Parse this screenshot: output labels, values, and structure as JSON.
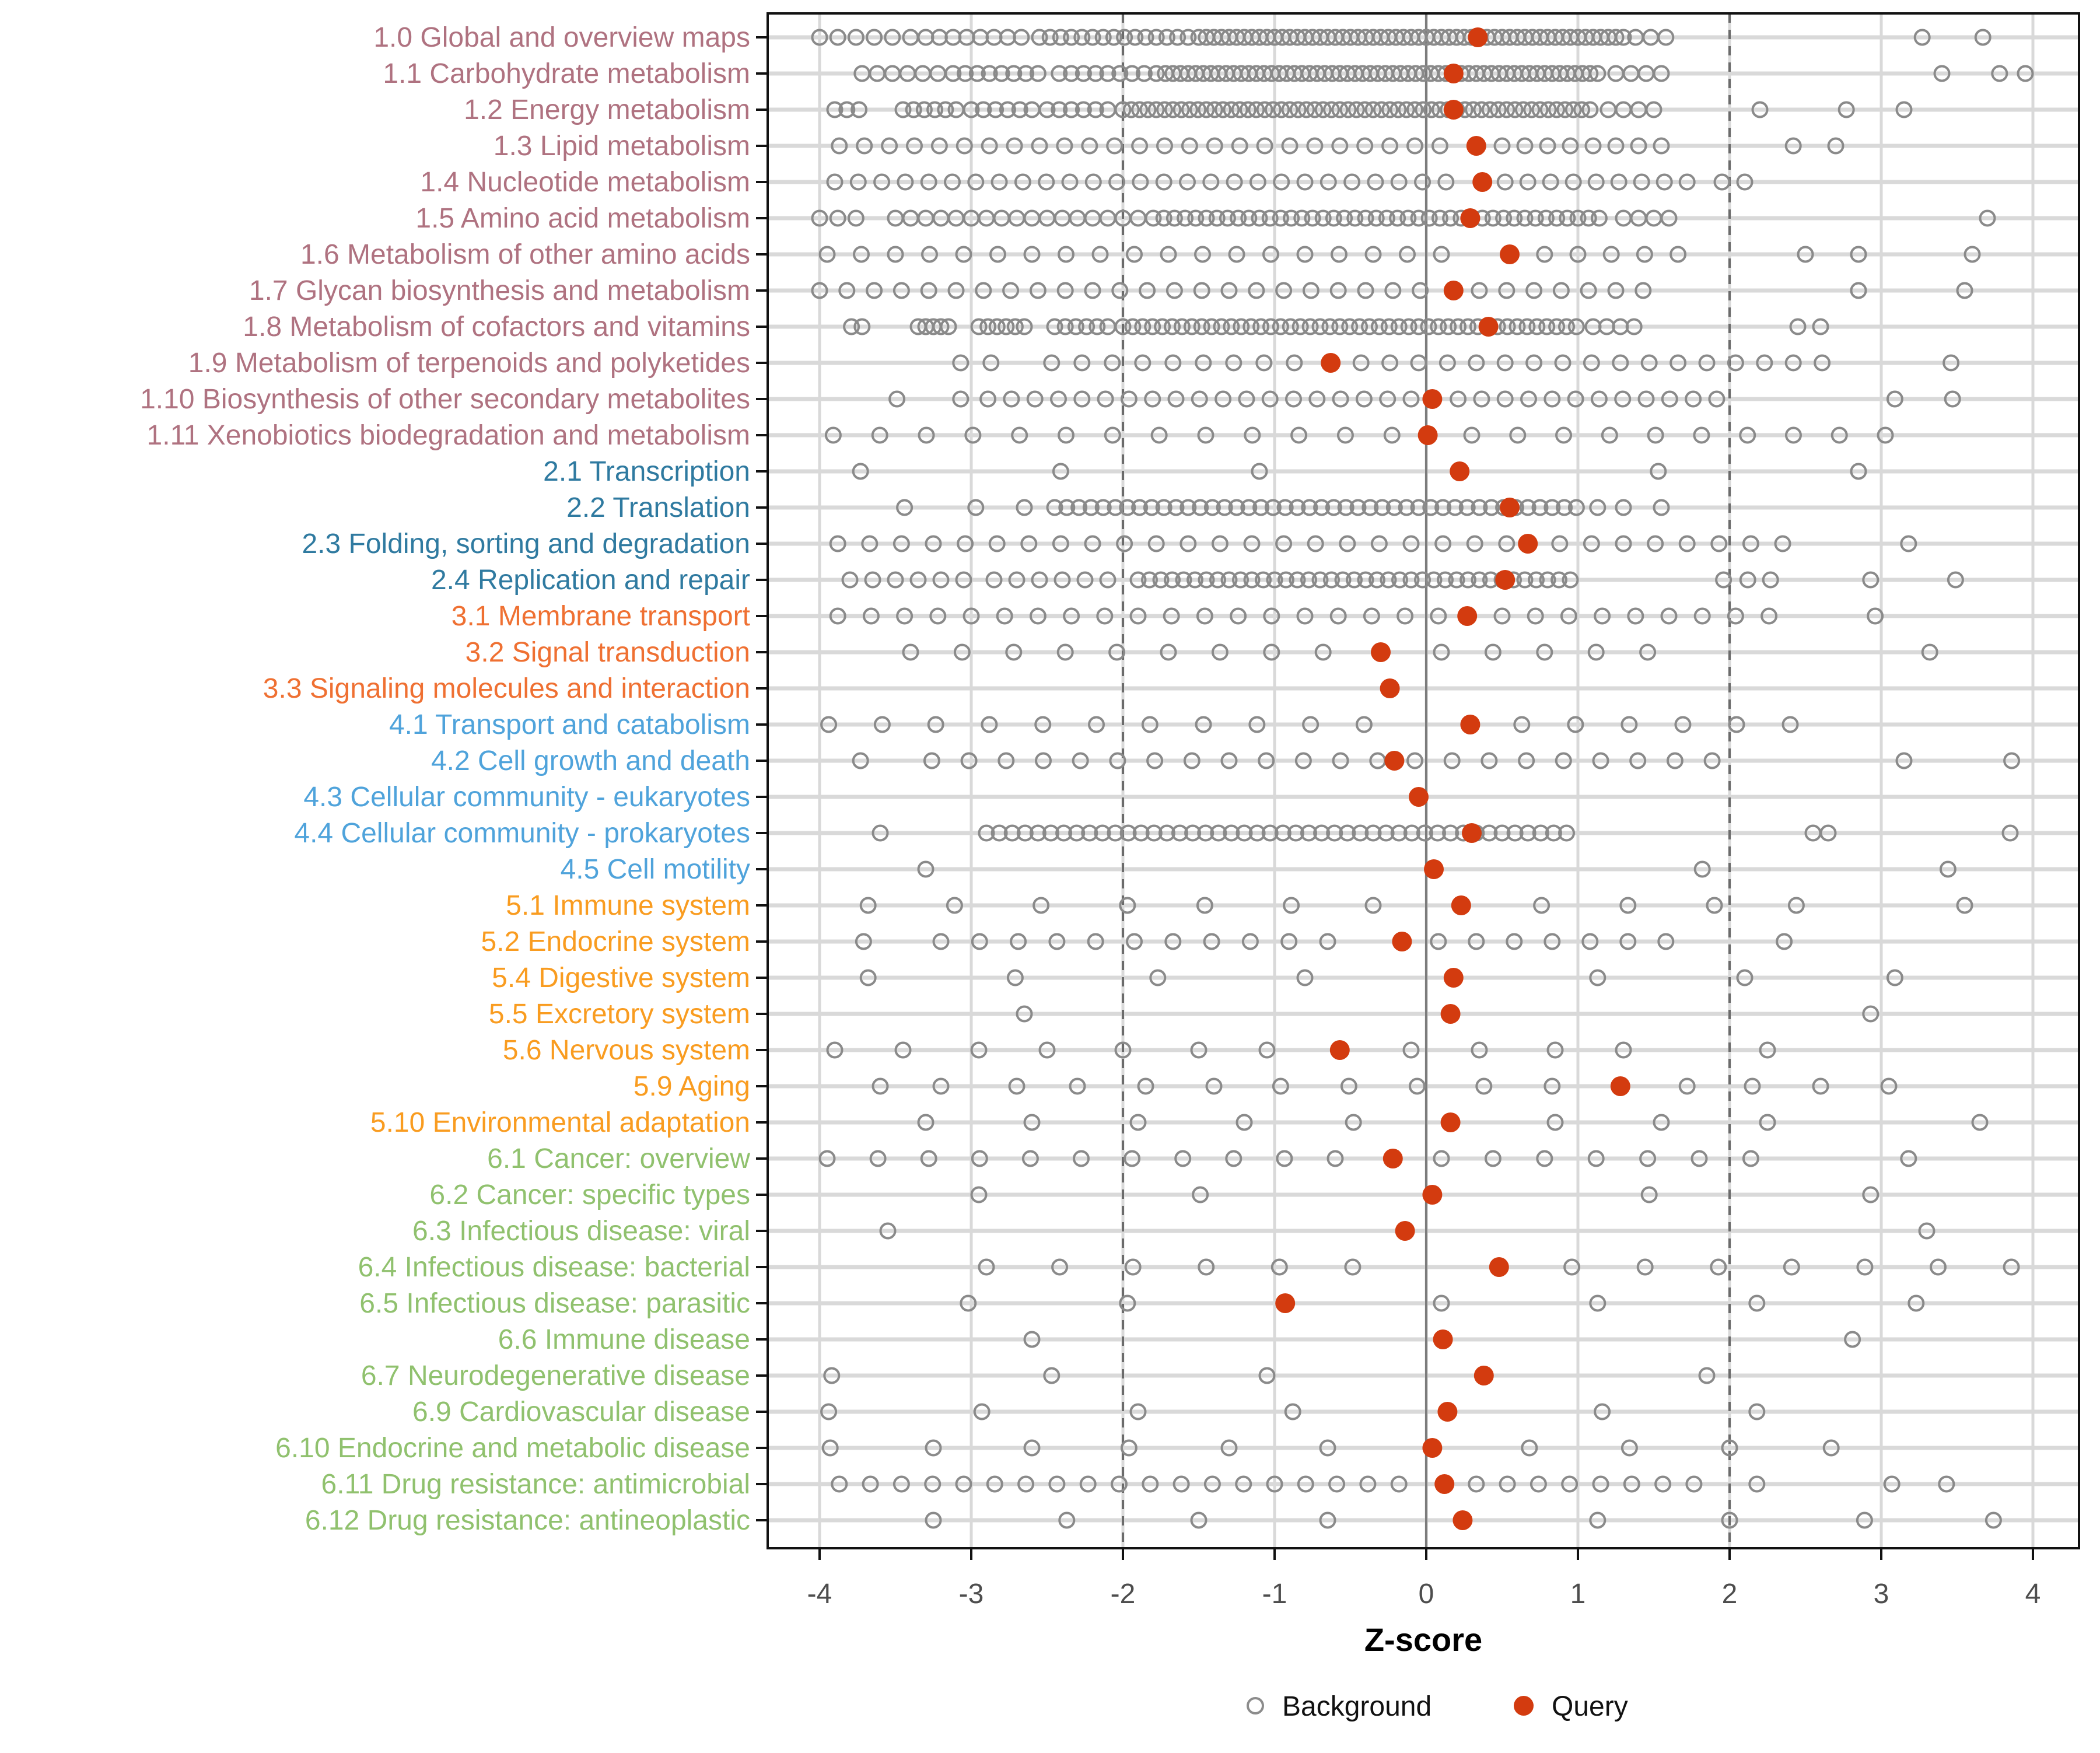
{
  "chart_data": {
    "type": "scatter",
    "title": "",
    "xlabel": "Z-score",
    "xlim": [
      -4.35,
      4.3
    ],
    "x_ticks": [
      -4,
      -3,
      -2,
      -1,
      0,
      1,
      2,
      3,
      4
    ],
    "grid": true,
    "reference_lines": {
      "solid_at": 0,
      "dashed_at": [
        -2,
        2
      ]
    },
    "legend_position": "bottom",
    "legend": [
      {
        "label": "Background",
        "marker": "open-circle",
        "color": "#8c8c8c"
      },
      {
        "label": "Query",
        "marker": "filled-circle",
        "color": "#d33b0f"
      }
    ],
    "groups": [
      {
        "id": "group-1",
        "color": "#af7280"
      },
      {
        "id": "group-2",
        "color": "#2f7aa0"
      },
      {
        "id": "group-3",
        "color": "#ef7032"
      },
      {
        "id": "group-4",
        "color": "#4fa3db"
      },
      {
        "id": "group-5",
        "color": "#f99c20"
      },
      {
        "id": "group-6",
        "color": "#90c16e"
      }
    ],
    "background_encoding": "each entry is a z value or a run [start, end, step]",
    "rows": [
      {
        "label": "1.0 Global and overview maps",
        "group": 0,
        "query": 0.34,
        "background": [
          [
            -4.0,
            -3.4,
            0.12
          ],
          [
            -3.3,
            -2.62,
            0.09
          ],
          [
            -2.55,
            -1.55,
            0.07
          ],
          [
            -1.5,
            1.3,
            0.05
          ],
          [
            1.38,
            1.66,
            0.1
          ],
          3.27,
          3.67
        ]
      },
      {
        "label": "1.1 Carbohydrate metabolism",
        "group": 0,
        "query": 0.18,
        "background": [
          [
            -3.72,
            -3.2,
            0.1
          ],
          [
            -3.12,
            -2.5,
            0.08
          ],
          [
            -2.42,
            -1.78,
            0.08
          ],
          [
            -1.72,
            1.15,
            0.05
          ],
          [
            1.25,
            1.55,
            0.1
          ],
          3.4,
          3.78,
          3.95
        ]
      },
      {
        "label": "1.2 Energy metabolism",
        "group": 0,
        "query": 0.18,
        "background": [
          [
            -3.9,
            -3.74,
            0.08
          ],
          [
            -3.45,
            -3.1,
            0.07
          ],
          [
            -3.0,
            -2.6,
            0.08
          ],
          [
            -2.5,
            -2.06,
            0.08
          ],
          [
            -2.0,
            1.1,
            0.055
          ],
          [
            1.2,
            1.5,
            0.1
          ],
          2.2,
          2.77,
          3.15
        ]
      },
      {
        "label": "1.3 Lipid metabolism",
        "group": 0,
        "query": 0.33,
        "background": [
          [
            -3.87,
            0.16,
            0.165
          ],
          [
            0.5,
            1.55,
            0.15
          ],
          2.42,
          2.7
        ]
      },
      {
        "label": "1.4 Nucleotide metabolism",
        "group": 0,
        "query": 0.37,
        "background": [
          [
            -3.9,
            0.25,
            0.155
          ],
          [
            0.52,
            1.72,
            0.15
          ],
          1.95,
          2.1
        ]
      },
      {
        "label": "1.5 Amino acid metabolism",
        "group": 0,
        "query": 0.29,
        "background": [
          [
            -4.0,
            -3.75,
            0.12
          ],
          [
            -3.5,
            -1.9,
            0.1
          ],
          [
            -1.8,
            1.2,
            0.07
          ],
          [
            1.3,
            1.6,
            0.1
          ],
          3.7
        ]
      },
      {
        "label": "1.6 Metabolism of other amino acids",
        "group": 0,
        "query": 0.55,
        "background": [
          [
            -3.95,
            0.32,
            0.225
          ],
          [
            0.78,
            1.68,
            0.22
          ],
          2.5,
          2.85,
          3.6
        ]
      },
      {
        "label": "1.7 Glycan biosynthesis and metabolism",
        "group": 0,
        "query": 0.18,
        "background": [
          [
            -4.0,
            -0.04,
            0.18
          ],
          [
            0.35,
            1.43,
            0.18
          ],
          2.85,
          3.55
        ]
      },
      {
        "label": "1.8 Metabolism of cofactors and vitamins",
        "group": 0,
        "query": 0.41,
        "background": [
          -3.79,
          -3.72,
          [
            -3.35,
            -3.15,
            0.05
          ],
          [
            -2.95,
            -2.65,
            0.06
          ],
          [
            -2.45,
            -2.1,
            0.07
          ],
          [
            -2.0,
            1.0,
            0.065
          ],
          [
            1.1,
            1.38,
            0.09
          ],
          2.45,
          2.6
        ]
      },
      {
        "label": "1.9 Metabolism of terpenoids and polyketides",
        "group": 0,
        "query": -0.63,
        "background": [
          [
            -3.07,
            -2.87,
            0.2
          ],
          [
            -2.47,
            -0.87,
            0.2
          ],
          [
            -0.43,
            2.61,
            0.19
          ],
          3.46
        ]
      },
      {
        "label": "1.10 Biosynthesis of other secondary metabolites",
        "group": 0,
        "query": 0.04,
        "background": [
          -3.49,
          -3.07,
          [
            -2.89,
            -0.1,
            0.155
          ],
          [
            0.21,
            2.02,
            0.155
          ],
          3.09,
          3.47
        ]
      },
      {
        "label": "1.11 Xenobiotics biodegradation and metabolism",
        "group": 0,
        "query": 0.01,
        "background": [
          [
            -3.91,
            -0.22,
            0.307
          ],
          [
            0.3,
            3.03,
            0.303
          ]
        ]
      },
      {
        "label": "2.1 Transcription",
        "group": 1,
        "query": 0.22,
        "background": [
          -3.73,
          -2.41,
          -1.1,
          1.53,
          2.85
        ]
      },
      {
        "label": "2.2 Translation",
        "group": 1,
        "query": 0.55,
        "background": [
          -3.44,
          -2.97,
          -2.65,
          [
            -2.45,
            0.99,
            0.08
          ],
          1.13,
          1.3,
          1.55
        ]
      },
      {
        "label": "2.3 Folding, sorting and degradation",
        "group": 1,
        "query": 0.67,
        "background": [
          [
            -3.88,
            0.53,
            0.21
          ],
          [
            0.88,
            2.36,
            0.21
          ],
          3.18
        ]
      },
      {
        "label": "2.4 Replication and repair",
        "group": 1,
        "query": 0.52,
        "background": [
          [
            -3.8,
            -3.05,
            0.15
          ],
          [
            -2.85,
            -2.1,
            0.15
          ],
          [
            -1.9,
            0.95,
            0.075
          ],
          1.96,
          2.12,
          2.27,
          2.93,
          3.49
        ]
      },
      {
        "label": "3.1 Membrane transport",
        "group": 2,
        "query": 0.27,
        "background": [
          [
            -3.88,
            0.08,
            0.22
          ],
          [
            0.5,
            2.26,
            0.22
          ],
          2.96
        ]
      },
      {
        "label": "3.2 Signal transduction",
        "group": 2,
        "query": -0.3,
        "background": [
          [
            -3.4,
            -0.68,
            0.34
          ],
          [
            0.1,
            1.79,
            0.34
          ],
          3.32
        ]
      },
      {
        "label": "3.3 Signaling molecules and interaction",
        "group": 2,
        "query": -0.24,
        "background": []
      },
      {
        "label": "4.1 Transport and catabolism",
        "group": 3,
        "query": 0.29,
        "background": [
          [
            -3.94,
            -0.06,
            0.353
          ],
          [
            0.63,
            2.4,
            0.354
          ]
        ]
      },
      {
        "label": "4.2 Cell growth and death",
        "group": 3,
        "query": -0.21,
        "background": [
          -3.73,
          [
            -3.26,
            -0.07,
            0.245
          ],
          [
            0.17,
            1.89,
            0.245
          ],
          3.15,
          3.86
        ]
      },
      {
        "label": "4.3 Cellular community - eukaryotes",
        "group": 3,
        "query": -0.05,
        "background": []
      },
      {
        "label": "4.4 Cellular community - prokaryotes",
        "group": 3,
        "query": 0.3,
        "background": [
          -3.6,
          [
            -2.9,
            0.95,
            0.085
          ],
          2.55,
          2.65,
          3.85
        ]
      },
      {
        "label": "4.5 Cell motility",
        "group": 3,
        "query": 0.05,
        "background": [
          -3.3,
          1.82,
          3.44
        ]
      },
      {
        "label": "5.1 Immune system",
        "group": 4,
        "query": 0.23,
        "background": [
          -3.68,
          -3.11,
          -2.54,
          -1.97,
          -1.46,
          -0.89,
          -0.35,
          0.76,
          1.33,
          1.9,
          2.44,
          3.55
        ]
      },
      {
        "label": "5.2 Endocrine system",
        "group": 4,
        "query": -0.16,
        "background": [
          -3.71,
          [
            -3.2,
            -0.41,
            0.255
          ],
          [
            0.08,
            1.59,
            0.25
          ],
          2.36
        ]
      },
      {
        "label": "5.4 Digestive system",
        "group": 4,
        "query": 0.18,
        "background": [
          -3.68,
          -2.71,
          -1.77,
          -0.8,
          1.13,
          2.1,
          3.09
        ]
      },
      {
        "label": "5.5 Excretory system",
        "group": 4,
        "query": 0.16,
        "background": [
          -2.65,
          2.93
        ]
      },
      {
        "label": "5.6 Nervous system",
        "group": 4,
        "query": -0.57,
        "background": [
          -3.9,
          -3.45,
          -2.95,
          -2.5,
          -2.0,
          -1.5,
          -1.05,
          -0.1,
          0.35,
          0.85,
          1.3,
          2.25
        ]
      },
      {
        "label": "5.9 Aging",
        "group": 4,
        "query": 1.28,
        "background": [
          -3.6,
          -3.2,
          -2.7,
          -2.3,
          -1.85,
          -1.4,
          -0.96,
          -0.51,
          -0.06,
          0.38,
          0.83,
          1.72,
          2.15,
          2.6,
          3.05
        ]
      },
      {
        "label": "5.10 Environmental adaptation",
        "group": 4,
        "query": 0.16,
        "background": [
          -3.3,
          -2.6,
          -1.9,
          -1.2,
          -0.48,
          0.85,
          1.55,
          2.25,
          3.65
        ]
      },
      {
        "label": "6.1 Cancer: overview",
        "group": 5,
        "query": -0.22,
        "background": [
          [
            -3.95,
            -0.6,
            0.335
          ],
          [
            0.1,
            2.15,
            0.34
          ],
          3.18
        ]
      },
      {
        "label": "6.2 Cancer: specific types",
        "group": 5,
        "query": 0.04,
        "background": [
          -2.95,
          -1.49,
          1.47,
          2.93
        ]
      },
      {
        "label": "6.3 Infectious disease: viral",
        "group": 5,
        "query": -0.14,
        "background": [
          -3.55,
          3.3
        ]
      },
      {
        "label": "6.4 Infectious disease: bacterial",
        "group": 5,
        "query": 0.48,
        "background": [
          [
            -2.9,
            -0.01,
            0.483
          ],
          [
            0.96,
            3.86,
            0.483
          ]
        ]
      },
      {
        "label": "6.5 Infectious disease: parasitic",
        "group": 5,
        "query": -0.93,
        "background": [
          -3.02,
          -1.97,
          0.1,
          1.13,
          2.18,
          3.23
        ]
      },
      {
        "label": "6.6 Immune disease",
        "group": 5,
        "query": 0.11,
        "background": [
          -2.6,
          2.81
        ]
      },
      {
        "label": "6.7 Neurodegenerative disease",
        "group": 5,
        "query": 0.38,
        "background": [
          -3.92,
          -2.47,
          -1.05,
          1.85
        ]
      },
      {
        "label": "6.9 Cardiovascular disease",
        "group": 5,
        "query": 0.14,
        "background": [
          -3.94,
          -2.93,
          -1.9,
          -0.88,
          1.16,
          2.18
        ]
      },
      {
        "label": "6.10 Endocrine and metabolic disease",
        "group": 5,
        "query": 0.04,
        "background": [
          -3.93,
          -3.25,
          -2.6,
          -1.96,
          -1.3,
          -0.65,
          0.68,
          1.34,
          2.0,
          2.67
        ]
      },
      {
        "label": "6.11 Drug resistance: antimicrobial",
        "group": 5,
        "query": 0.12,
        "background": [
          [
            -3.87,
            -0.18,
            0.205
          ],
          [
            0.33,
            1.78,
            0.205
          ],
          2.18,
          3.07,
          3.43
        ]
      },
      {
        "label": "6.12 Drug resistance: antineoplastic",
        "group": 5,
        "query": 0.24,
        "background": [
          -3.25,
          -2.37,
          -1.5,
          -0.65,
          1.13,
          2.0,
          2.89,
          3.74
        ]
      }
    ]
  }
}
